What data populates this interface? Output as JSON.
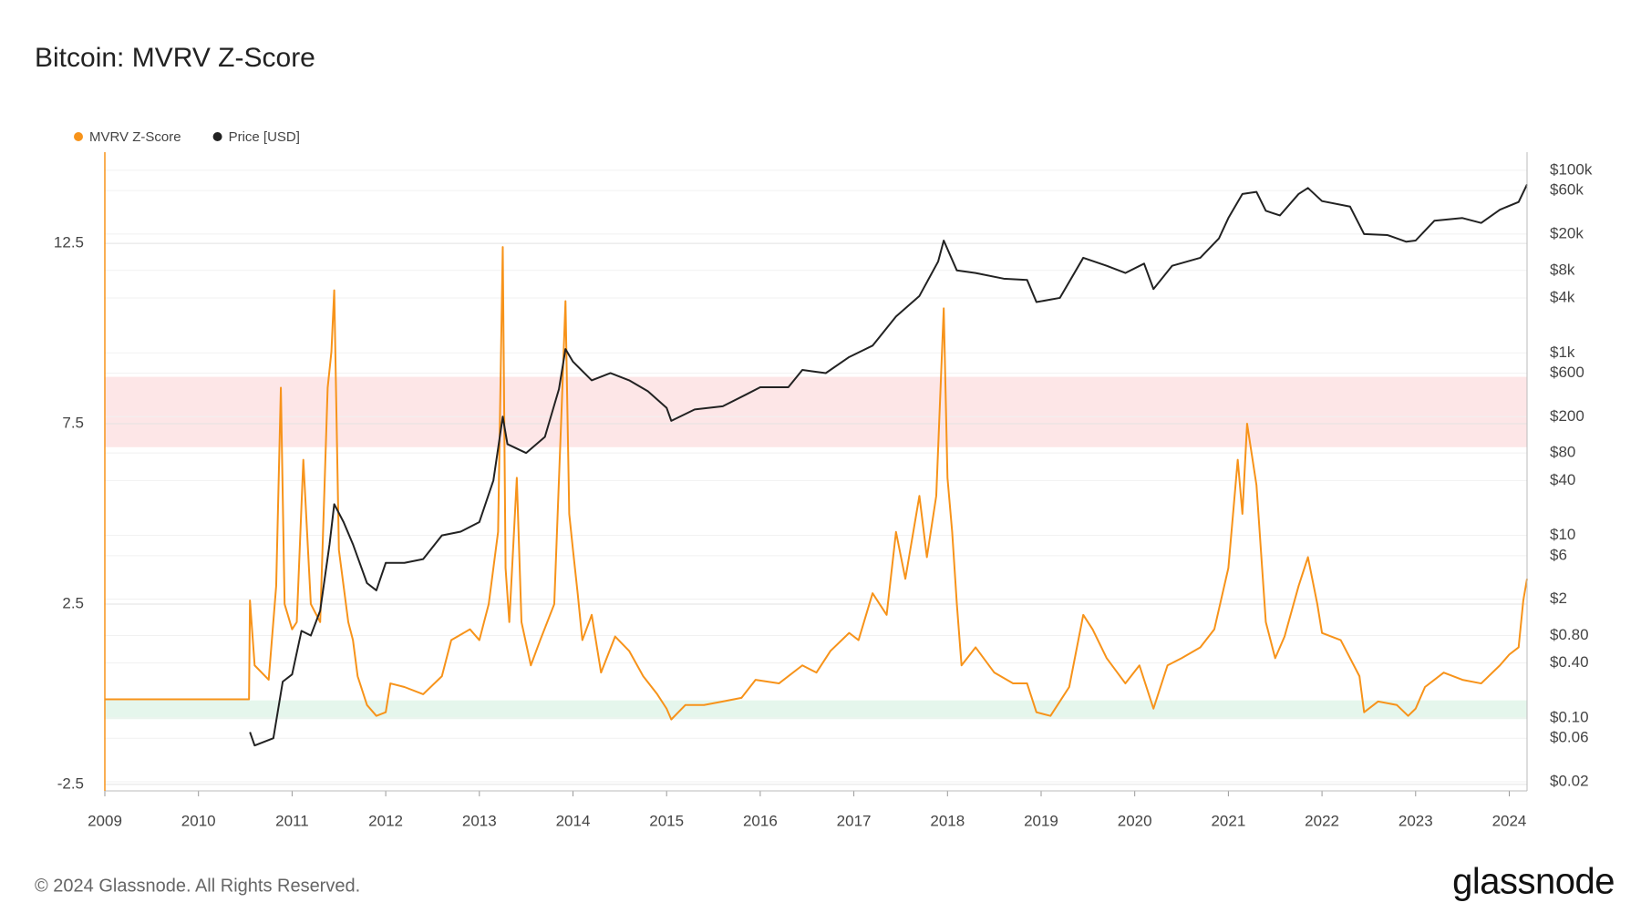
{
  "chart_data": {
    "type": "line",
    "title": "Bitcoin: MVRV Z-Score",
    "footer": "© 2024 Glassnode. All Rights Reserved.",
    "brand": "glassnode",
    "xlim": [
      2009,
      2024.19
    ],
    "xticks": [
      2009,
      2010,
      2011,
      2012,
      2013,
      2014,
      2015,
      2016,
      2017,
      2018,
      2019,
      2020,
      2021,
      2022,
      2023,
      2024
    ],
    "ylim": [
      -2.68,
      15.03
    ],
    "yticks": [
      -2.5,
      2.5,
      7.5,
      12.5
    ],
    "y2lim": [
      0.0159,
      158000
    ],
    "y2log": true,
    "y2ticks": [
      {
        "value": 0.02,
        "label": "$0.02"
      },
      {
        "value": 0.06,
        "label": "$0.06"
      },
      {
        "value": 0.1,
        "label": "$0.10"
      },
      {
        "value": 0.4,
        "label": "$0.40"
      },
      {
        "value": 0.8,
        "label": "$0.80"
      },
      {
        "value": 2,
        "label": "$2"
      },
      {
        "value": 6,
        "label": "$6"
      },
      {
        "value": 10,
        "label": "$10"
      },
      {
        "value": 40,
        "label": "$40"
      },
      {
        "value": 80,
        "label": "$80"
      },
      {
        "value": 200,
        "label": "$200"
      },
      {
        "value": 600,
        "label": "$600"
      },
      {
        "value": 1000,
        "label": "$1k"
      },
      {
        "value": 4000,
        "label": "$4k"
      },
      {
        "value": 8000,
        "label": "$8k"
      },
      {
        "value": 20000,
        "label": "$20k"
      },
      {
        "value": 60000,
        "label": "$60k"
      },
      {
        "value": 100000,
        "label": "$100k"
      }
    ],
    "grid": true,
    "legend": "top-left",
    "bands": [
      {
        "from": 6.85,
        "to": 8.8,
        "color": "#fde6e7"
      },
      {
        "from": -0.69,
        "to": -0.17,
        "color": "#e5f6ec"
      }
    ],
    "series": [
      {
        "name": "MVRV Z-Score",
        "color": "#f7931a",
        "x": [
          2009.0,
          2010.54,
          2010.55,
          2010.6,
          2010.75,
          2010.83,
          2010.88,
          2010.92,
          2011.0,
          2011.05,
          2011.12,
          2011.2,
          2011.3,
          2011.38,
          2011.42,
          2011.45,
          2011.5,
          2011.6,
          2011.65,
          2011.7,
          2011.8,
          2011.9,
          2012.0,
          2012.05,
          2012.2,
          2012.4,
          2012.6,
          2012.7,
          2012.9,
          2013.0,
          2013.1,
          2013.2,
          2013.25,
          2013.28,
          2013.32,
          2013.4,
          2013.45,
          2013.55,
          2013.65,
          2013.8,
          2013.88,
          2013.92,
          2013.96,
          2014.0,
          2014.05,
          2014.1,
          2014.2,
          2014.3,
          2014.45,
          2014.6,
          2014.75,
          2014.9,
          2015.0,
          2015.05,
          2015.2,
          2015.4,
          2015.6,
          2015.8,
          2015.95,
          2016.2,
          2016.45,
          2016.6,
          2016.75,
          2016.95,
          2017.05,
          2017.2,
          2017.35,
          2017.45,
          2017.55,
          2017.7,
          2017.78,
          2017.88,
          2017.96,
          2018.0,
          2018.05,
          2018.1,
          2018.15,
          2018.3,
          2018.5,
          2018.7,
          2018.85,
          2018.95,
          2019.1,
          2019.3,
          2019.45,
          2019.55,
          2019.7,
          2019.9,
          2020.05,
          2020.2,
          2020.35,
          2020.5,
          2020.7,
          2020.85,
          2021.0,
          2021.1,
          2021.15,
          2021.2,
          2021.3,
          2021.4,
          2021.5,
          2021.6,
          2021.75,
          2021.85,
          2021.95,
          2022.0,
          2022.2,
          2022.4,
          2022.45,
          2022.6,
          2022.8,
          2022.92,
          2023.0,
          2023.1,
          2023.3,
          2023.5,
          2023.7,
          2023.9,
          2024.0,
          2024.1,
          2024.15,
          2024.19
        ],
        "values": [
          -0.14,
          -0.14,
          2.6,
          0.8,
          0.4,
          3.0,
          8.5,
          2.5,
          1.8,
          2.0,
          6.5,
          2.5,
          2.0,
          8.5,
          9.5,
          11.2,
          4.0,
          2.0,
          1.5,
          0.5,
          -0.3,
          -0.6,
          -0.5,
          0.3,
          0.2,
          0.0,
          0.5,
          1.5,
          1.8,
          1.5,
          2.5,
          4.5,
          12.4,
          3.5,
          2.0,
          6.0,
          2.0,
          0.8,
          1.5,
          2.5,
          8.0,
          10.9,
          5.0,
          4.0,
          2.8,
          1.5,
          2.2,
          0.6,
          1.6,
          1.2,
          0.5,
          0.0,
          -0.4,
          -0.7,
          -0.3,
          -0.3,
          -0.2,
          -0.1,
          0.4,
          0.3,
          0.8,
          0.6,
          1.2,
          1.7,
          1.5,
          2.8,
          2.2,
          4.5,
          3.2,
          5.5,
          3.8,
          5.5,
          10.7,
          6.0,
          4.5,
          2.5,
          0.8,
          1.3,
          0.6,
          0.3,
          0.3,
          -0.5,
          -0.6,
          0.2,
          2.2,
          1.8,
          1.0,
          0.3,
          0.8,
          -0.4,
          0.8,
          1.0,
          1.3,
          1.8,
          3.5,
          6.5,
          5.0,
          7.5,
          5.8,
          2.0,
          1.0,
          1.6,
          3.0,
          3.8,
          2.5,
          1.7,
          1.5,
          0.5,
          -0.5,
          -0.2,
          -0.3,
          -0.6,
          -0.4,
          0.2,
          0.6,
          0.4,
          0.3,
          0.8,
          1.1,
          1.3,
          2.6,
          3.2
        ]
      },
      {
        "name": "Price [USD]",
        "color": "#222222",
        "axis": "y2",
        "x": [
          2010.55,
          2010.6,
          2010.8,
          2010.9,
          2011.0,
          2011.1,
          2011.2,
          2011.3,
          2011.4,
          2011.45,
          2011.55,
          2011.65,
          2011.8,
          2011.9,
          2012.0,
          2012.2,
          2012.4,
          2012.6,
          2012.8,
          2013.0,
          2013.15,
          2013.25,
          2013.3,
          2013.5,
          2013.7,
          2013.85,
          2013.92,
          2014.0,
          2014.2,
          2014.4,
          2014.6,
          2014.8,
          2015.0,
          2015.05,
          2015.3,
          2015.6,
          2015.85,
          2016.0,
          2016.3,
          2016.45,
          2016.7,
          2016.95,
          2017.2,
          2017.45,
          2017.7,
          2017.9,
          2017.96,
          2018.1,
          2018.3,
          2018.6,
          2018.85,
          2018.95,
          2019.2,
          2019.45,
          2019.7,
          2019.9,
          2020.1,
          2020.2,
          2020.4,
          2020.7,
          2020.9,
          2021.0,
          2021.15,
          2021.3,
          2021.4,
          2021.55,
          2021.75,
          2021.85,
          2022.0,
          2022.3,
          2022.45,
          2022.7,
          2022.9,
          2023.0,
          2023.2,
          2023.5,
          2023.7,
          2023.9,
          2024.1,
          2024.19
        ],
        "values": [
          0.07,
          0.05,
          0.06,
          0.25,
          0.3,
          0.9,
          0.8,
          1.5,
          8,
          22,
          14,
          8,
          3,
          2.5,
          5,
          5,
          5.5,
          10,
          11,
          14,
          40,
          200,
          100,
          80,
          120,
          400,
          1100,
          800,
          500,
          600,
          500,
          380,
          250,
          180,
          240,
          260,
          350,
          420,
          420,
          650,
          600,
          900,
          1200,
          2500,
          4200,
          10000,
          17000,
          8000,
          7500,
          6500,
          6300,
          3600,
          4000,
          11000,
          9000,
          7500,
          9500,
          5000,
          9000,
          11000,
          18000,
          30000,
          55000,
          58000,
          36000,
          32000,
          55000,
          64000,
          46000,
          40000,
          20000,
          19500,
          16500,
          17000,
          28000,
          30000,
          26500,
          37000,
          45000,
          70000
        ]
      }
    ]
  }
}
